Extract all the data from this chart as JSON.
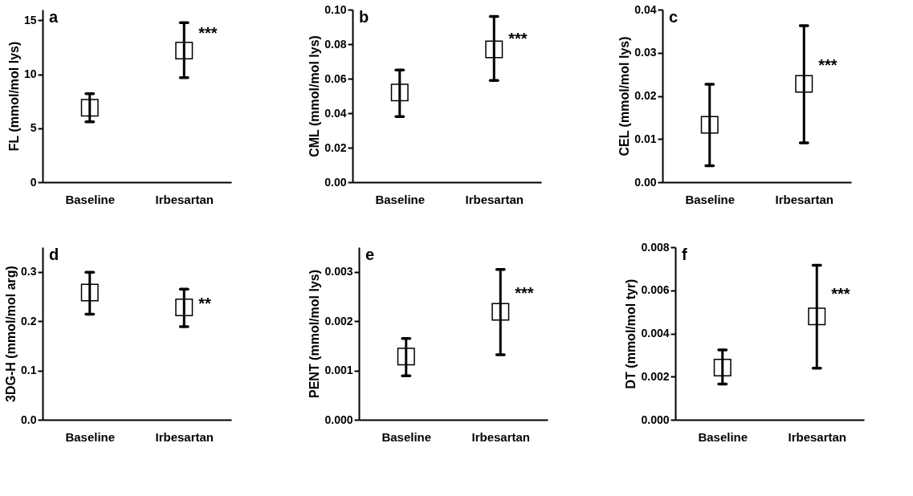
{
  "chart_data": [
    {
      "type": "scatter",
      "title": "a",
      "ylabel": "FL (mmol/mol lys)",
      "categories": [
        "Baseline",
        "Irbesartan"
      ],
      "series": [
        {
          "color": "#ffffff",
          "values": [
            6.9,
            12.2
          ],
          "errors": [
            [
              5.6,
              8.2
            ],
            [
              9.7,
              14.8
            ]
          ]
        }
      ],
      "marker": "square",
      "ylim": [
        0,
        16
      ],
      "yticks": [
        0,
        5,
        10,
        15
      ],
      "annotations": [
        {
          "text": "***",
          "x": "Irbesartan",
          "y": 13.8
        }
      ]
    },
    {
      "type": "scatter",
      "title": "b",
      "ylabel": "CML (mmol/mol lys)",
      "categories": [
        "Baseline",
        "Irbesartan"
      ],
      "series": [
        {
          "color": "#ffffff",
          "values": [
            0.052,
            0.077
          ],
          "errors": [
            [
              0.038,
              0.065
            ],
            [
              0.059,
              0.096
            ]
          ]
        }
      ],
      "marker": "square",
      "ylim": [
        0,
        0.1
      ],
      "yticks": [
        {
          "value": 0,
          "label": "0.00"
        },
        {
          "value": 0.02,
          "label": "0.02"
        },
        {
          "value": 0.04,
          "label": "0.04"
        },
        {
          "value": 0.06,
          "label": "0.06"
        },
        {
          "value": 0.08,
          "label": "0.08"
        },
        {
          "value": 0.1,
          "label": "0.10"
        }
      ],
      "annotations": [
        {
          "text": "***",
          "x": "Irbesartan",
          "y": 0.083
        }
      ]
    },
    {
      "type": "scatter",
      "title": "c",
      "ylabel": "CEL (mmol/mol lys)",
      "categories": [
        "Baseline",
        "Irbesartan"
      ],
      "series": [
        {
          "color": "#ffffff",
          "values": [
            0.0133,
            0.0228
          ],
          "errors": [
            [
              0.0038,
              0.0227
            ],
            [
              0.0091,
              0.0363
            ]
          ]
        }
      ],
      "marker": "square",
      "ylim": [
        0,
        0.04
      ],
      "yticks": [
        {
          "value": 0,
          "label": "0.00"
        },
        0.01,
        0.02,
        0.03,
        0.04
      ],
      "annotations": [
        {
          "text": "***",
          "x": "Irbesartan",
          "y": 0.027
        }
      ]
    },
    {
      "type": "scatter",
      "title": "d",
      "ylabel": "3DG-H (mmol/mol arg)",
      "categories": [
        "Baseline",
        "Irbesartan"
      ],
      "series": [
        {
          "color": "#ffffff",
          "values": [
            0.258,
            0.228
          ],
          "errors": [
            [
              0.214,
              0.299
            ],
            [
              0.189,
              0.265
            ]
          ]
        }
      ],
      "marker": "square",
      "ylim": [
        0,
        0.35
      ],
      "yticks": [
        {
          "value": 0,
          "label": "0.0"
        },
        0.1,
        0.2,
        0.3
      ],
      "annotations": [
        {
          "text": "**",
          "x": "Irbesartan",
          "y": 0.235
        }
      ]
    },
    {
      "type": "scatter",
      "title": "e",
      "ylabel": "PENT (mmol/mol lys)",
      "categories": [
        "Baseline",
        "Irbesartan"
      ],
      "series": [
        {
          "color": "#ffffff",
          "values": [
            0.00128,
            0.00219
          ],
          "errors": [
            [
              0.00089,
              0.00165
            ],
            [
              0.00132,
              0.00305
            ]
          ]
        }
      ],
      "marker": "square",
      "ylim": [
        0,
        0.0035
      ],
      "yticks": [
        {
          "value": 0,
          "label": "0.000"
        },
        0.001,
        0.002,
        0.003
      ],
      "annotations": [
        {
          "text": "***",
          "x": "Irbesartan",
          "y": 0.00255
        }
      ]
    },
    {
      "type": "scatter",
      "title": "f",
      "ylabel": "DT (mmol/mol tyr)",
      "categories": [
        "Baseline",
        "Irbesartan"
      ],
      "series": [
        {
          "color": "#ffffff",
          "values": [
            0.00242,
            0.00479
          ],
          "errors": [
            [
              0.00166,
              0.00324
            ],
            [
              0.00239,
              0.00716
            ]
          ]
        }
      ],
      "marker": "square",
      "ylim": [
        0,
        0.008
      ],
      "yticks": [
        {
          "value": 0,
          "label": "0.000"
        },
        0.002,
        0.004,
        0.006,
        0.008
      ],
      "annotations": [
        {
          "text": "***",
          "x": "Irbesartan",
          "y": 0.0058
        }
      ]
    }
  ]
}
